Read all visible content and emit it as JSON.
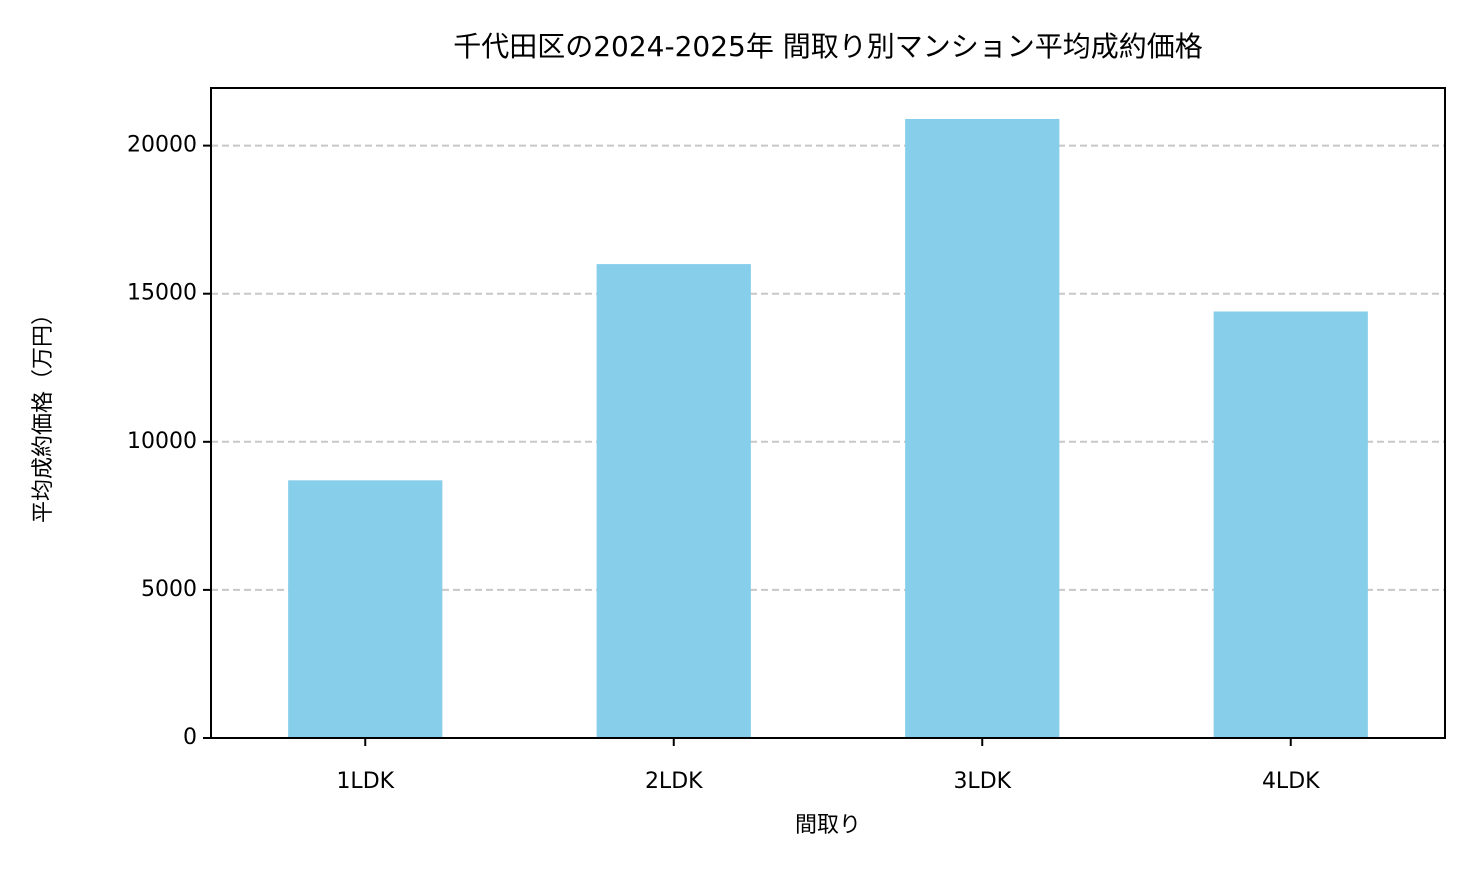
{
  "chart_data": {
    "type": "bar",
    "title": "千代田区の2024-2025年 間取り別マンション平均成約価格",
    "x_label": "間取り",
    "y_label": "平均成約価格（万円）",
    "categories": [
      "1LDK",
      "2LDK",
      "3LDK",
      "4LDK"
    ],
    "values": [
      8700,
      16000,
      20900,
      14400
    ],
    "color": "#87ceeb",
    "ylim": [
      0,
      21945
    ],
    "yticks": [
      0,
      5000,
      10000,
      15000,
      20000
    ],
    "grid": true
  }
}
